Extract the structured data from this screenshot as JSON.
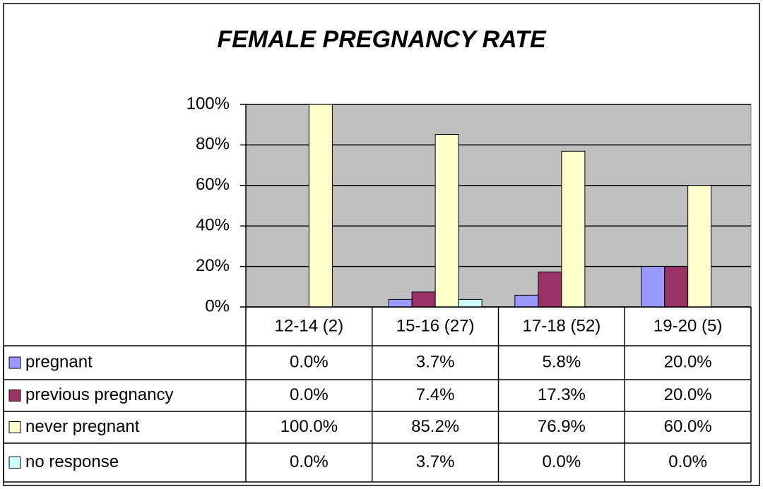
{
  "chart_data": {
    "type": "bar",
    "title": "FEMALE PREGNANCY RATE",
    "categories": [
      "12-14 (2)",
      "15-16 (27)",
      "17-18 (52)",
      "19-20 (5)"
    ],
    "series": [
      {
        "name": "pregnant",
        "color": "#9999ff",
        "values": [
          0.0,
          3.7,
          5.8,
          20.0
        ],
        "value_labels": [
          "0.0%",
          "3.7%",
          "5.8%",
          "20.0%"
        ]
      },
      {
        "name": "previous pregnancy",
        "color": "#993366",
        "values": [
          0.0,
          7.4,
          17.3,
          20.0
        ],
        "value_labels": [
          "0.0%",
          "7.4%",
          "17.3%",
          "20.0%"
        ]
      },
      {
        "name": "never pregnant",
        "color": "#ffffcc",
        "values": [
          100.0,
          85.2,
          76.9,
          60.0
        ],
        "value_labels": [
          "100.0%",
          "85.2%",
          "76.9%",
          "60.0%"
        ]
      },
      {
        "name": "no response",
        "color": "#ccffff",
        "values": [
          0.0,
          3.7,
          0.0,
          0.0
        ],
        "value_labels": [
          "0.0%",
          "3.7%",
          "0.0%",
          "0.0%"
        ]
      }
    ],
    "ylim": [
      0,
      100
    ],
    "yticks": [
      {
        "value": 0,
        "label": "0%"
      },
      {
        "value": 20,
        "label": "20%"
      },
      {
        "value": 40,
        "label": "40%"
      },
      {
        "value": 60,
        "label": "60%"
      },
      {
        "value": 80,
        "label": "80%"
      },
      {
        "value": 100,
        "label": "100%"
      }
    ],
    "grid": true,
    "plot_background": "#c0c0c0"
  }
}
